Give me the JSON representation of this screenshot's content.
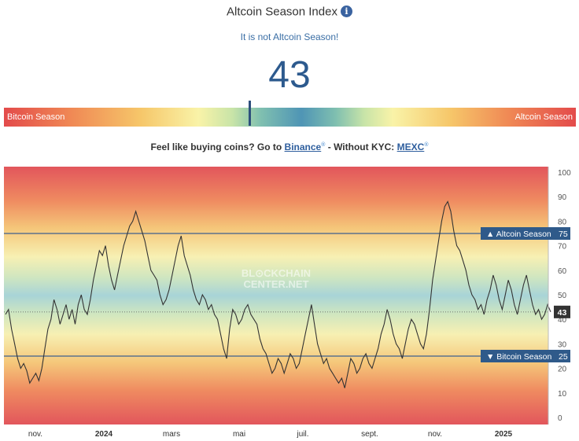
{
  "header": {
    "title": "Altcoin Season Index",
    "info_icon": "info-icon"
  },
  "status_text": "It is not Altcoin Season!",
  "index_value": 43,
  "gauge": {
    "left_label": "Bitcoin Season",
    "right_label": "Altcoin Season",
    "needle_value": 43
  },
  "promo": {
    "lead": "Feel like buying coins? Go to",
    "binance": "Binance",
    "mid": "- Without KYC:",
    "mexc": "MEXC",
    "ext_mark": "®"
  },
  "colors": {
    "accent": "#2d5a8e",
    "label_box": "#2f5a8a"
  },
  "chart_data": {
    "type": "line",
    "watermark": "BL⊙CKCHAIN CENTER.NET",
    "ylim": [
      0,
      100
    ],
    "y_ticks": [
      0,
      10,
      20,
      30,
      40,
      50,
      60,
      70,
      80,
      90,
      100
    ],
    "x_ticks": [
      "nov.",
      "2024",
      "mars",
      "mai",
      "juil.",
      "sept.",
      "nov.",
      "2025"
    ],
    "thresholds": [
      {
        "value": 75,
        "label": "▲ Altcoin Season",
        "value_label": "75"
      },
      {
        "value": 25,
        "label": "▼ Bitcoin Season",
        "value_label": "25"
      }
    ],
    "current": {
      "value": 43,
      "label": "43"
    },
    "series": [
      {
        "values": [
          42,
          44,
          36,
          30,
          24,
          20,
          22,
          19,
          14,
          16,
          18,
          15,
          20,
          28,
          36,
          40,
          48,
          44,
          38,
          42,
          46,
          40,
          44,
          38,
          46,
          50,
          44,
          42,
          48,
          56,
          62,
          68,
          66,
          70,
          62,
          56,
          52,
          58,
          64,
          70,
          74,
          78,
          80,
          84,
          80,
          76,
          72,
          66,
          60,
          58,
          56,
          50,
          46,
          48,
          52,
          58,
          64,
          70,
          74,
          66,
          62,
          58,
          52,
          48,
          46,
          50,
          48,
          44,
          46,
          42,
          40,
          34,
          28,
          24,
          36,
          44,
          42,
          38,
          40,
          44,
          46,
          42,
          40,
          38,
          32,
          28,
          26,
          22,
          18,
          20,
          24,
          22,
          18,
          22,
          26,
          24,
          20,
          22,
          28,
          34,
          40,
          46,
          38,
          30,
          26,
          22,
          24,
          20,
          18,
          16,
          14,
          16,
          12,
          18,
          24,
          22,
          18,
          20,
          24,
          26,
          22,
          20,
          24,
          28,
          34,
          38,
          44,
          40,
          34,
          30,
          28,
          24,
          30,
          36,
          40,
          38,
          34,
          30,
          28,
          34,
          44,
          56,
          64,
          72,
          80,
          86,
          88,
          84,
          76,
          70,
          68,
          64,
          60,
          54,
          50,
          48,
          44,
          46,
          42,
          48,
          52,
          58,
          54,
          48,
          44,
          50,
          56,
          52,
          46,
          42,
          48,
          54,
          58,
          52,
          46,
          42,
          44,
          40,
          42,
          46,
          43
        ]
      }
    ]
  }
}
